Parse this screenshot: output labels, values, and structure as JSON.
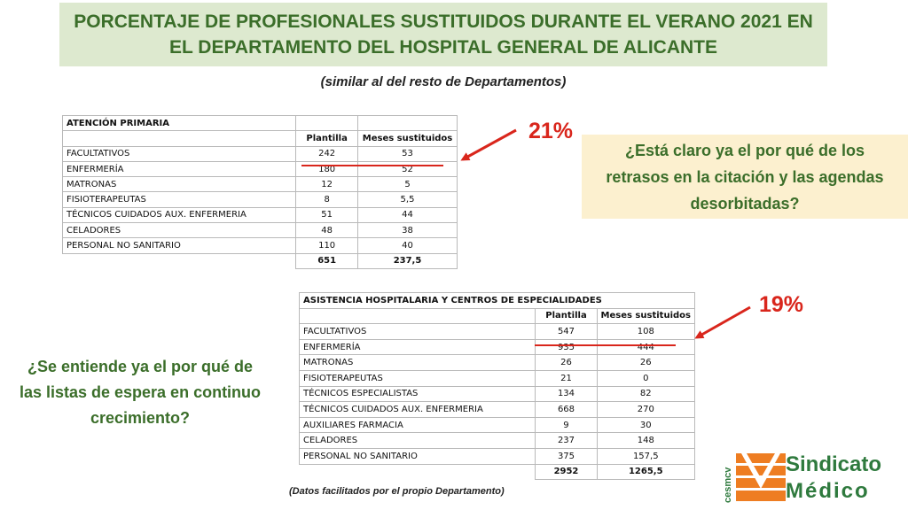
{
  "title": {
    "line1": "PORCENTAJE DE PROFESIONALES SUSTITUIDOS DURANTE EL VERANO 2021 EN",
    "line2": "EL DEPARTAMENTO DEL HOSPITAL GENERAL DE ALICANTE"
  },
  "subtitle": "(similar al del resto de Departamentos)",
  "table1": {
    "title": "ATENCIÓN PRIMARIA",
    "headers": [
      "Plantilla",
      "Meses sustituidos"
    ],
    "rows": [
      {
        "label": "FACULTATIVOS",
        "plantilla": "242",
        "meses": "53"
      },
      {
        "label": "ENFERMERÍA",
        "plantilla": "180",
        "meses": "52"
      },
      {
        "label": "MATRONAS",
        "plantilla": "12",
        "meses": "5"
      },
      {
        "label": "FISIOTERAPEUTAS",
        "plantilla": "8",
        "meses": "5,5"
      },
      {
        "label": "TÉCNICOS CUIDADOS AUX. ENFERMERIA",
        "plantilla": "51",
        "meses": "44"
      },
      {
        "label": "CELADORES",
        "plantilla": "48",
        "meses": "38"
      },
      {
        "label": "PERSONAL NO SANITARIO",
        "plantilla": "110",
        "meses": "40"
      }
    ],
    "total": {
      "plantilla": "651",
      "meses": "237,5"
    },
    "percent": "21%"
  },
  "table2": {
    "title": "ASISTENCIA HOSPITALARIA Y CENTROS DE ESPECIALIDADES",
    "headers": [
      "Plantilla",
      "Meses sustituidos"
    ],
    "rows": [
      {
        "label": "FACULTATIVOS",
        "plantilla": "547",
        "meses": "108"
      },
      {
        "label": "ENFERMERÍA",
        "plantilla": "935",
        "meses": "444"
      },
      {
        "label": "MATRONAS",
        "plantilla": "26",
        "meses": "26"
      },
      {
        "label": "FISIOTERAPEUTAS",
        "plantilla": "21",
        "meses": "0"
      },
      {
        "label": "TÉCNICOS ESPECIALISTAS",
        "plantilla": "134",
        "meses": "82"
      },
      {
        "label": "TÉCNICOS CUIDADOS AUX. ENFERMERIA",
        "plantilla": "668",
        "meses": "270"
      },
      {
        "label": "AUXILIARES FARMACIA",
        "plantilla": "9",
        "meses": "30"
      },
      {
        "label": "CELADORES",
        "plantilla": "237",
        "meses": "148"
      },
      {
        "label": "PERSONAL NO SANITARIO",
        "plantilla": "375",
        "meses": "157,5"
      }
    ],
    "total": {
      "plantilla": "2952",
      "meses": "1265,5"
    },
    "percent": "19%"
  },
  "question1": {
    "line1": "¿Está claro ya el por qué de los",
    "line2": "retrasos en la citación y las agendas",
    "line3": "desorbitadas?"
  },
  "question2": {
    "line1": "¿Se entiende ya el por qué de",
    "line2": "las listas de espera en continuo",
    "line3": "crecimiento?"
  },
  "source_note": "(Datos facilitados por el propio Departamento)",
  "logo": {
    "side": "cesmcv",
    "line1": "Sindicato",
    "line2": "Médico"
  },
  "colors": {
    "title_green": "#3b6e2a",
    "title_bg": "#dde9cf",
    "question_bg": "#fcf0cf",
    "alert_red": "#d9261c",
    "logo_orange": "#ee7d22",
    "logo_green": "#2f7a3e"
  }
}
